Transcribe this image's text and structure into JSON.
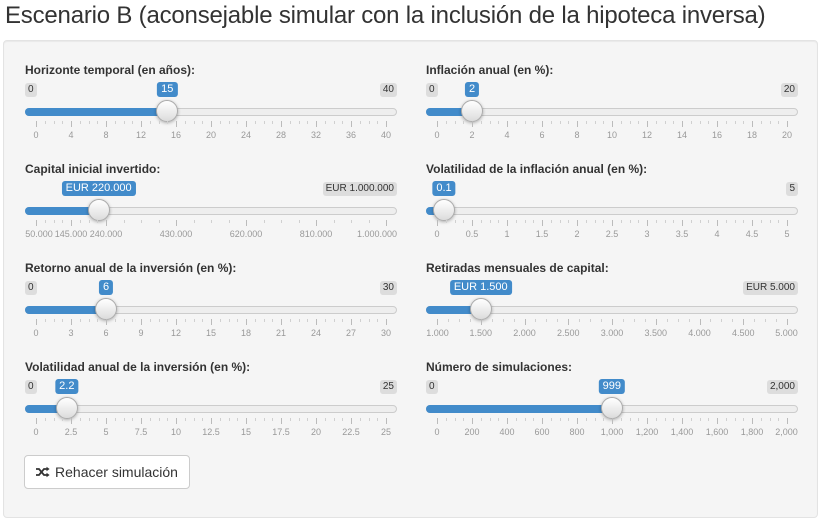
{
  "page": {
    "title": "Escenario B (aconsejable simular con la inclusión de la hipoteca inversa)"
  },
  "sliders": [
    {
      "id": "horizonte",
      "label": "Horizonte temporal (en años):",
      "min": 0,
      "max": 40,
      "value": 15,
      "min_label": "0",
      "max_label": "40",
      "value_label": "15",
      "ticks": [
        {
          "v": 0,
          "t": "0"
        },
        {
          "v": 4,
          "t": "4"
        },
        {
          "v": 8,
          "t": "8"
        },
        {
          "v": 12,
          "t": "12"
        },
        {
          "v": 16,
          "t": "16"
        },
        {
          "v": 20,
          "t": "20"
        },
        {
          "v": 24,
          "t": "24"
        },
        {
          "v": 28,
          "t": "28"
        },
        {
          "v": 32,
          "t": "32"
        },
        {
          "v": 36,
          "t": "36"
        },
        {
          "v": 40,
          "t": "40"
        }
      ]
    },
    {
      "id": "inflacion",
      "label": "Inflación anual (en %):",
      "min": 0,
      "max": 20,
      "value": 2,
      "min_label": "0",
      "max_label": "20",
      "value_label": "2",
      "ticks": [
        {
          "v": 0,
          "t": "0"
        },
        {
          "v": 2,
          "t": "2"
        },
        {
          "v": 4,
          "t": "4"
        },
        {
          "v": 6,
          "t": "6"
        },
        {
          "v": 8,
          "t": "8"
        },
        {
          "v": 10,
          "t": "10"
        },
        {
          "v": 12,
          "t": "12"
        },
        {
          "v": 14,
          "t": "14"
        },
        {
          "v": 16,
          "t": "16"
        },
        {
          "v": 18,
          "t": "18"
        },
        {
          "v": 20,
          "t": "20"
        }
      ]
    },
    {
      "id": "capital",
      "label": "Capital inicial invertido:",
      "min": 50000,
      "max": 1000000,
      "value": 220000,
      "min_label": "",
      "max_label": "EUR 1.000.000",
      "value_label": "EUR 220.000",
      "ticks": [
        {
          "v": 50000,
          "t": "50.000"
        },
        {
          "v": 145000,
          "t": "145.000"
        },
        {
          "v": 240000,
          "t": "240.000"
        },
        {
          "v": 430000,
          "t": "430.000"
        },
        {
          "v": 620000,
          "t": "620.000"
        },
        {
          "v": 810000,
          "t": "810.000"
        },
        {
          "v": 1000000,
          "t": "1.000.000"
        }
      ]
    },
    {
      "id": "volinflacion",
      "label": "Volatilidad de la inflación anual (en %):",
      "min": 0,
      "max": 5,
      "value": 0.1,
      "min_label": "",
      "max_label": "5",
      "value_label": "0.1",
      "ticks": [
        {
          "v": 0,
          "t": "0"
        },
        {
          "v": 0.5,
          "t": "0.5"
        },
        {
          "v": 1,
          "t": "1"
        },
        {
          "v": 1.5,
          "t": "1.5"
        },
        {
          "v": 2,
          "t": "2"
        },
        {
          "v": 2.5,
          "t": "2.5"
        },
        {
          "v": 3,
          "t": "3"
        },
        {
          "v": 3.5,
          "t": "3.5"
        },
        {
          "v": 4,
          "t": "4"
        },
        {
          "v": 4.5,
          "t": "4.5"
        },
        {
          "v": 5,
          "t": "5"
        }
      ]
    },
    {
      "id": "retorno",
      "label": "Retorno anual de la inversión (en %):",
      "min": 0,
      "max": 30,
      "value": 6,
      "min_label": "0",
      "max_label": "30",
      "value_label": "6",
      "ticks": [
        {
          "v": 0,
          "t": "0"
        },
        {
          "v": 3,
          "t": "3"
        },
        {
          "v": 6,
          "t": "6"
        },
        {
          "v": 9,
          "t": "9"
        },
        {
          "v": 12,
          "t": "12"
        },
        {
          "v": 15,
          "t": "15"
        },
        {
          "v": 18,
          "t": "18"
        },
        {
          "v": 21,
          "t": "21"
        },
        {
          "v": 24,
          "t": "24"
        },
        {
          "v": 27,
          "t": "27"
        },
        {
          "v": 30,
          "t": "30"
        }
      ]
    },
    {
      "id": "retiradas",
      "label": "Retiradas mensuales de capital:",
      "min": 1000,
      "max": 5000,
      "value": 1500,
      "min_label": "",
      "max_label": "EUR 5.000",
      "value_label": "EUR 1.500",
      "ticks": [
        {
          "v": 1000,
          "t": "1.000"
        },
        {
          "v": 1500,
          "t": "1.500"
        },
        {
          "v": 2000,
          "t": "2.000"
        },
        {
          "v": 2500,
          "t": "2.500"
        },
        {
          "v": 3000,
          "t": "3.000"
        },
        {
          "v": 3500,
          "t": "3.500"
        },
        {
          "v": 4000,
          "t": "4.000"
        },
        {
          "v": 4500,
          "t": "4.500"
        },
        {
          "v": 5000,
          "t": "5.000"
        }
      ]
    },
    {
      "id": "volretorno",
      "label": "Volatilidad anual de la inversión (en %):",
      "min": 0,
      "max": 25,
      "value": 2.2,
      "min_label": "0",
      "max_label": "25",
      "value_label": "2.2",
      "ticks": [
        {
          "v": 0,
          "t": "0"
        },
        {
          "v": 2.5,
          "t": "2.5"
        },
        {
          "v": 5,
          "t": "5"
        },
        {
          "v": 7.5,
          "t": "7.5"
        },
        {
          "v": 10,
          "t": "10"
        },
        {
          "v": 12.5,
          "t": "12.5"
        },
        {
          "v": 15,
          "t": "15"
        },
        {
          "v": 17.5,
          "t": "17.5"
        },
        {
          "v": 20,
          "t": "20"
        },
        {
          "v": 22.5,
          "t": "22.5"
        },
        {
          "v": 25,
          "t": "25"
        }
      ]
    },
    {
      "id": "simulaciones",
      "label": "Número de simulaciones:",
      "min": 0,
      "max": 2000,
      "value": 999,
      "min_label": "0",
      "max_label": "2,000",
      "value_label": "999",
      "ticks": [
        {
          "v": 0,
          "t": "0"
        },
        {
          "v": 200,
          "t": "200"
        },
        {
          "v": 400,
          "t": "400"
        },
        {
          "v": 600,
          "t": "600"
        },
        {
          "v": 800,
          "t": "800"
        },
        {
          "v": 1000,
          "t": "1,000"
        },
        {
          "v": 1200,
          "t": "1,200"
        },
        {
          "v": 1400,
          "t": "1,400"
        },
        {
          "v": 1600,
          "t": "1,600"
        },
        {
          "v": 1800,
          "t": "1,800"
        },
        {
          "v": 2000,
          "t": "2,000"
        }
      ]
    }
  ],
  "button": {
    "label": "Rehacer simulación",
    "icon": "shuffle-icon"
  }
}
